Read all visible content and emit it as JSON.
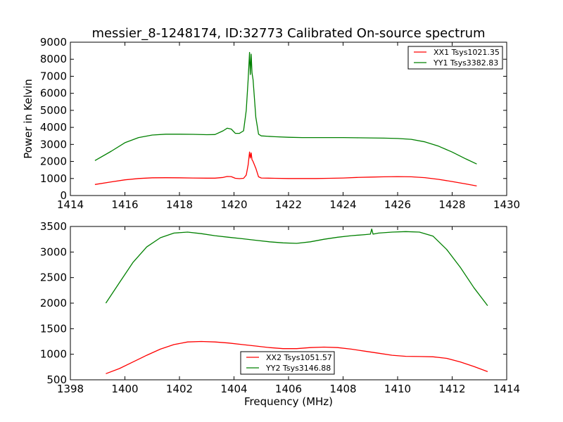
{
  "chart_data": [
    {
      "type": "line",
      "title": "messier_8-1248174, ID:32773 Calibrated On-source spectrum",
      "xlabel": "",
      "ylabel": "Power in Kelvin",
      "xlim": [
        1414,
        1430
      ],
      "ylim": [
        0,
        9000
      ],
      "xticks": [
        "1414",
        "1416",
        "1418",
        "1420",
        "1422",
        "1424",
        "1426",
        "1428",
        "1430"
      ],
      "yticks": [
        "0",
        "1000",
        "2000",
        "3000",
        "4000",
        "5000",
        "6000",
        "7000",
        "8000",
        "9000"
      ],
      "grid": false,
      "legend": "top-right",
      "series": [
        {
          "name": "XX1 Tsys1021.35",
          "color": "#ff0000",
          "x": [
            1414.9,
            1415.5,
            1416.0,
            1416.5,
            1417.0,
            1417.5,
            1418.0,
            1418.5,
            1419.0,
            1419.3,
            1419.6,
            1419.75,
            1419.9,
            1420.05,
            1420.2,
            1420.35,
            1420.45,
            1420.52,
            1420.57,
            1420.6,
            1420.63,
            1420.66,
            1420.7,
            1420.8,
            1420.9,
            1421.0,
            1421.5,
            1422.0,
            1422.5,
            1423.0,
            1423.5,
            1424.0,
            1424.5,
            1425.0,
            1425.5,
            1426.0,
            1426.5,
            1427.0,
            1427.5,
            1428.0,
            1428.5,
            1428.9
          ],
          "y": [
            650,
            800,
            920,
            1000,
            1040,
            1045,
            1040,
            1030,
            1020,
            1020,
            1060,
            1120,
            1110,
            1010,
            990,
            1010,
            1200,
            1800,
            2550,
            2200,
            2500,
            2100,
            2000,
            1600,
            1100,
            1030,
            1010,
            1000,
            1000,
            1000,
            1010,
            1030,
            1060,
            1080,
            1100,
            1110,
            1100,
            1050,
            950,
            820,
            680,
            560
          ]
        },
        {
          "name": "YY1 Tsys3382.83",
          "color": "#008000",
          "x": [
            1414.9,
            1415.5,
            1416.0,
            1416.5,
            1417.0,
            1417.5,
            1418.0,
            1418.5,
            1419.0,
            1419.3,
            1419.6,
            1419.75,
            1419.9,
            1420.05,
            1420.2,
            1420.35,
            1420.45,
            1420.52,
            1420.57,
            1420.6,
            1420.63,
            1420.66,
            1420.7,
            1420.8,
            1420.9,
            1421.0,
            1421.5,
            1422.0,
            1422.5,
            1423.0,
            1423.5,
            1424.0,
            1424.5,
            1425.0,
            1425.5,
            1426.0,
            1426.5,
            1427.0,
            1427.5,
            1428.0,
            1428.5,
            1428.9
          ],
          "y": [
            2050,
            2600,
            3100,
            3400,
            3550,
            3600,
            3600,
            3590,
            3570,
            3580,
            3800,
            3950,
            3900,
            3650,
            3650,
            3800,
            5000,
            6800,
            8400,
            7100,
            8300,
            7200,
            6800,
            4600,
            3600,
            3500,
            3450,
            3420,
            3400,
            3400,
            3400,
            3400,
            3390,
            3380,
            3370,
            3350,
            3300,
            3150,
            2900,
            2550,
            2150,
            1850
          ]
        }
      ]
    },
    {
      "type": "line",
      "title": "",
      "xlabel": "Frequency (MHz)",
      "ylabel": "",
      "xlim": [
        1398,
        1414
      ],
      "ylim": [
        500,
        3500
      ],
      "xticks": [
        "1398",
        "1400",
        "1402",
        "1404",
        "1406",
        "1408",
        "1410",
        "1412",
        "1414"
      ],
      "yticks": [
        "500",
        "1000",
        "1500",
        "2000",
        "2500",
        "3000",
        "3500"
      ],
      "grid": false,
      "legend": "bottom-center",
      "series": [
        {
          "name": "XX2 Tsys1051.57",
          "color": "#ff0000",
          "x": [
            1399.3,
            1399.8,
            1400.3,
            1400.8,
            1401.3,
            1401.8,
            1402.3,
            1402.8,
            1403.3,
            1403.8,
            1404.3,
            1404.8,
            1405.3,
            1405.8,
            1406.3,
            1406.8,
            1407.3,
            1407.8,
            1408.3,
            1408.8,
            1409.3,
            1409.8,
            1410.3,
            1410.8,
            1411.3,
            1411.8,
            1412.3,
            1412.8,
            1413.3
          ],
          "y": [
            620,
            720,
            850,
            980,
            1100,
            1190,
            1240,
            1250,
            1240,
            1220,
            1190,
            1160,
            1130,
            1110,
            1110,
            1130,
            1140,
            1130,
            1100,
            1060,
            1020,
            980,
            960,
            955,
            950,
            920,
            850,
            760,
            660
          ]
        },
        {
          "name": "YY2 Tsys3146.88",
          "color": "#008000",
          "x": [
            1399.3,
            1399.8,
            1400.3,
            1400.8,
            1401.3,
            1401.8,
            1402.3,
            1402.8,
            1403.3,
            1403.8,
            1404.3,
            1404.8,
            1405.3,
            1405.8,
            1406.3,
            1406.8,
            1407.3,
            1407.8,
            1408.3,
            1408.8,
            1409.0,
            1409.05,
            1409.1,
            1409.3,
            1409.8,
            1410.3,
            1410.8,
            1411.3,
            1411.8,
            1412.3,
            1412.8,
            1413.3
          ],
          "y": [
            2000,
            2400,
            2800,
            3100,
            3280,
            3370,
            3390,
            3360,
            3320,
            3290,
            3260,
            3230,
            3200,
            3180,
            3170,
            3200,
            3250,
            3290,
            3320,
            3340,
            3350,
            3450,
            3350,
            3370,
            3390,
            3400,
            3390,
            3310,
            3050,
            2700,
            2300,
            1950
          ]
        }
      ]
    }
  ]
}
